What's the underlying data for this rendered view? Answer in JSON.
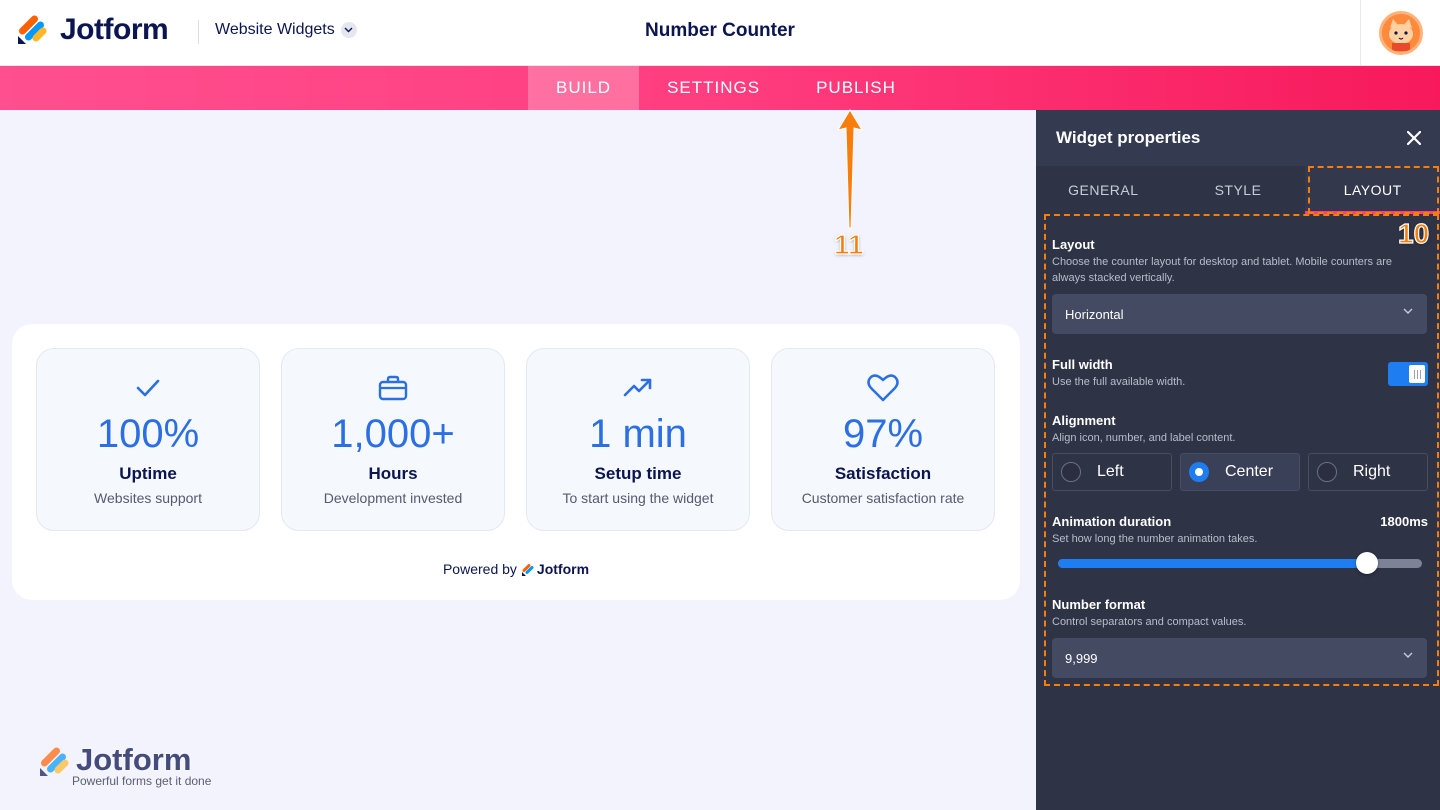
{
  "header": {
    "brand": "Jotform",
    "product": "Website Widgets",
    "title": "Number Counter"
  },
  "nav": {
    "tabs": [
      {
        "label": "BUILD",
        "active": true
      },
      {
        "label": "SETTINGS",
        "active": false
      },
      {
        "label": "PUBLISH",
        "active": false
      }
    ]
  },
  "annotations": {
    "publish_marker": "11",
    "layout_marker": "10",
    "color": "#f97d0b"
  },
  "preview": {
    "stats": [
      {
        "icon": "check-icon",
        "value": "100%",
        "label": "Uptime",
        "description": "Websites support"
      },
      {
        "icon": "briefcase-icon",
        "value": "1,000+",
        "label": "Hours",
        "description": "Development invested"
      },
      {
        "icon": "trending-up-icon",
        "value": "1 min",
        "label": "Setup time",
        "description": "To start using the widget"
      },
      {
        "icon": "heart-icon",
        "value": "97%",
        "label": "Satisfaction",
        "description": "Customer satisfaction rate"
      }
    ],
    "powered_prefix": "Powered by",
    "powered_brand": "Jotform",
    "accent": "#2b6fe3"
  },
  "watermark": {
    "brand": "Jotform",
    "tagline": "Powerful forms get it done"
  },
  "panel": {
    "title": "Widget properties",
    "tabs": [
      {
        "label": "GENERAL",
        "active": false
      },
      {
        "label": "STYLE",
        "active": false
      },
      {
        "label": "LAYOUT",
        "active": true
      }
    ],
    "layout": {
      "title": "Layout",
      "description": "Choose the counter layout for desktop and tablet. Mobile counters are always stacked vertically.",
      "selected": "Horizontal"
    },
    "full_width": {
      "title": "Full width",
      "description": "Use the full available width.",
      "enabled": true
    },
    "alignment": {
      "title": "Alignment",
      "description": "Align icon, number, and label content.",
      "options": [
        {
          "label": "Left",
          "selected": false
        },
        {
          "label": "Center",
          "selected": true
        },
        {
          "label": "Right",
          "selected": false
        }
      ]
    },
    "animation": {
      "title": "Animation duration",
      "description": "Set how long the number animation takes.",
      "value": "1800ms",
      "slider_fraction": 0.85
    },
    "number_format": {
      "title": "Number format",
      "description": "Control separators and compact values.",
      "selected": "9,999"
    },
    "accent": "#1f7df2"
  }
}
